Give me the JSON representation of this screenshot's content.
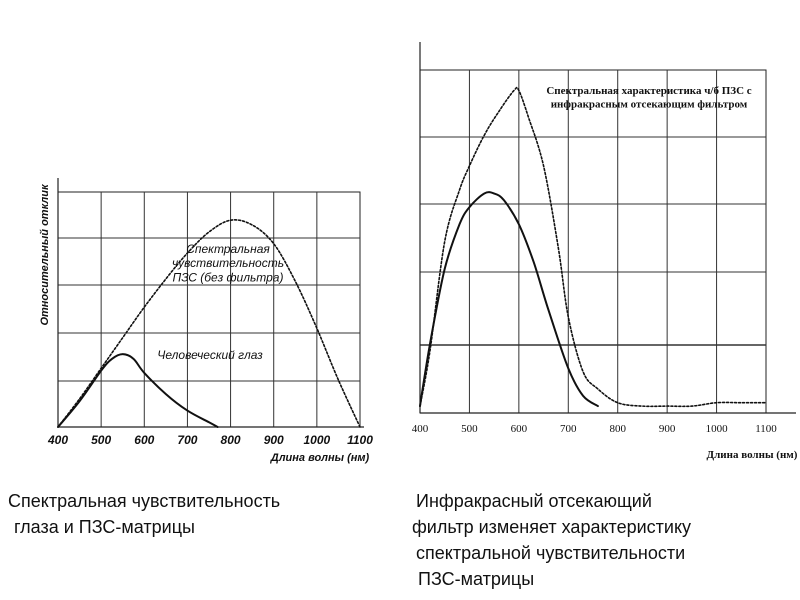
{
  "chart_data": [
    {
      "type": "line",
      "ylabel": "Относительный отклик",
      "xlabel": "Длина волны (нм)",
      "x_ticks": [
        400,
        500,
        600,
        700,
        800,
        900,
        1000,
        1100
      ],
      "xlim": [
        400,
        1100
      ],
      "ylim": [
        0,
        1
      ],
      "grid": true,
      "annotations": [
        {
          "text": "Спектральная",
          "x": 790,
          "y": 0.74
        },
        {
          "text": "чувствительность",
          "x": 790,
          "y": 0.68
        },
        {
          "text": "ПЗС (без фильтра)",
          "x": 790,
          "y": 0.62
        },
        {
          "text": "Человеческий глаз",
          "x": 720,
          "y": 0.29
        }
      ],
      "series": [
        {
          "style": "dotted",
          "x": [
            400,
            450,
            500,
            550,
            600,
            650,
            700,
            750,
            800,
            850,
            900,
            950,
            1000,
            1050,
            1100
          ],
          "y": [
            0.0,
            0.12,
            0.25,
            0.38,
            0.51,
            0.63,
            0.74,
            0.83,
            0.88,
            0.86,
            0.78,
            0.62,
            0.42,
            0.2,
            0.0
          ]
        },
        {
          "style": "solid",
          "x": [
            400,
            450,
            500,
            525,
            550,
            575,
            600,
            650,
            700,
            750,
            770
          ],
          "y": [
            0.0,
            0.11,
            0.24,
            0.29,
            0.31,
            0.29,
            0.23,
            0.14,
            0.07,
            0.02,
            0.0
          ]
        }
      ]
    },
    {
      "type": "line",
      "xlabel": "Длина волны (нм)",
      "x_ticks": [
        400,
        500,
        600,
        700,
        800,
        900,
        1000,
        1100
      ],
      "xlim": [
        400,
        1100
      ],
      "ylim": [
        0,
        1
      ],
      "grid": true,
      "annotations": [
        {
          "text": "Спектральная характеристика ч/б ПЗС с",
          "x": 810,
          "y": 0.93
        },
        {
          "text": "инфракрасным отсекающим фильтром",
          "x": 810,
          "y": 0.89
        }
      ],
      "series": [
        {
          "style": "dotted",
          "x": [
            400,
            420,
            450,
            480,
            500,
            530,
            560,
            590,
            600,
            620,
            650,
            680,
            700,
            730,
            760,
            800,
            850,
            900,
            950,
            1000,
            1050,
            1100
          ],
          "y": [
            0.02,
            0.18,
            0.5,
            0.65,
            0.72,
            0.81,
            0.88,
            0.94,
            0.94,
            0.86,
            0.72,
            0.48,
            0.28,
            0.12,
            0.07,
            0.03,
            0.02,
            0.02,
            0.02,
            0.03,
            0.03,
            0.03
          ]
        },
        {
          "style": "solid",
          "x": [
            400,
            420,
            450,
            480,
            500,
            530,
            550,
            570,
            600,
            630,
            660,
            700,
            730,
            760
          ],
          "y": [
            0.02,
            0.2,
            0.42,
            0.55,
            0.6,
            0.64,
            0.64,
            0.62,
            0.55,
            0.44,
            0.3,
            0.13,
            0.05,
            0.02
          ]
        }
      ]
    }
  ],
  "captions": {
    "left": [
      "Спектральная чувствительность",
      "глаза и ПЗС-матрицы"
    ],
    "right": [
      "Инфракрасный отсекающий",
      "фильтр  изменяет характеристику",
      "спектральной чувствительности",
      "ПЗС-матрицы"
    ]
  }
}
